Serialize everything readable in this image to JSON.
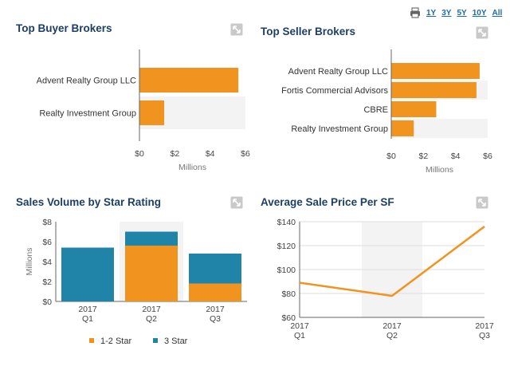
{
  "toolbar": {
    "print_icon": "printer-icon",
    "ranges": [
      "1Y",
      "3Y",
      "5Y",
      "10Y",
      "All"
    ]
  },
  "panels": {
    "buyer": {
      "title": "Top Buyer Brokers"
    },
    "seller": {
      "title": "Top Seller Brokers"
    },
    "volume": {
      "title": "Sales Volume by Star Rating"
    },
    "price": {
      "title": "Average Sale Price Per SF"
    }
  },
  "colors": {
    "orange": "#f0931f",
    "teal": "#1f84a8",
    "title": "#1d3f66",
    "link": "#1a6ab0"
  },
  "chart_data": [
    {
      "id": "buyer",
      "type": "bar",
      "orientation": "horizontal",
      "title": "Top Buyer Brokers",
      "categories": [
        "Advent Realty Group LLC",
        "Realty Investment Group"
      ],
      "values": [
        5.6,
        1.4
      ],
      "xlabel": "Millions",
      "xlim": [
        0,
        6
      ],
      "xticks": [
        0,
        2,
        4,
        6
      ],
      "tick_labels": [
        "$0",
        "$2",
        "$4",
        "$6"
      ]
    },
    {
      "id": "seller",
      "type": "bar",
      "orientation": "horizontal",
      "title": "Top Seller Brokers",
      "categories": [
        "Advent Realty Group LLC",
        "Fortis Commercial Advisors",
        "CBRE",
        "Realty Investment Group"
      ],
      "values": [
        5.5,
        5.3,
        2.8,
        1.4
      ],
      "xlabel": "Millions",
      "xlim": [
        0,
        6
      ],
      "xticks": [
        0,
        2,
        4,
        6
      ],
      "tick_labels": [
        "$0",
        "$2",
        "$4",
        "$6"
      ]
    },
    {
      "id": "volume",
      "type": "bar",
      "stacked": true,
      "title": "Sales Volume by Star Rating",
      "categories": [
        "2017\nQ1",
        "2017\nQ2",
        "2017\nQ3"
      ],
      "series": [
        {
          "name": "1-2 Star",
          "color": "#f0931f",
          "values": [
            0,
            5.6,
            1.8
          ]
        },
        {
          "name": "3 Star",
          "color": "#1f84a8",
          "values": [
            5.4,
            1.4,
            3.0
          ]
        }
      ],
      "ylabel": "Millions",
      "ylim": [
        0,
        8
      ],
      "yticks": [
        0,
        2,
        4,
        6,
        8
      ],
      "tick_labels": [
        "$0",
        "$2",
        "$4",
        "$6",
        "$8"
      ],
      "legend": "bottom"
    },
    {
      "id": "price",
      "type": "line",
      "title": "Average Sale Price Per SF",
      "categories": [
        "2017\nQ1",
        "2017\nQ2",
        "2017\nQ3"
      ],
      "values": [
        89,
        78,
        136
      ],
      "ylim": [
        60,
        140
      ],
      "yticks": [
        60,
        80,
        100,
        120,
        140
      ],
      "tick_labels": [
        "$60",
        "$80",
        "$100",
        "$120",
        "$140"
      ]
    }
  ]
}
